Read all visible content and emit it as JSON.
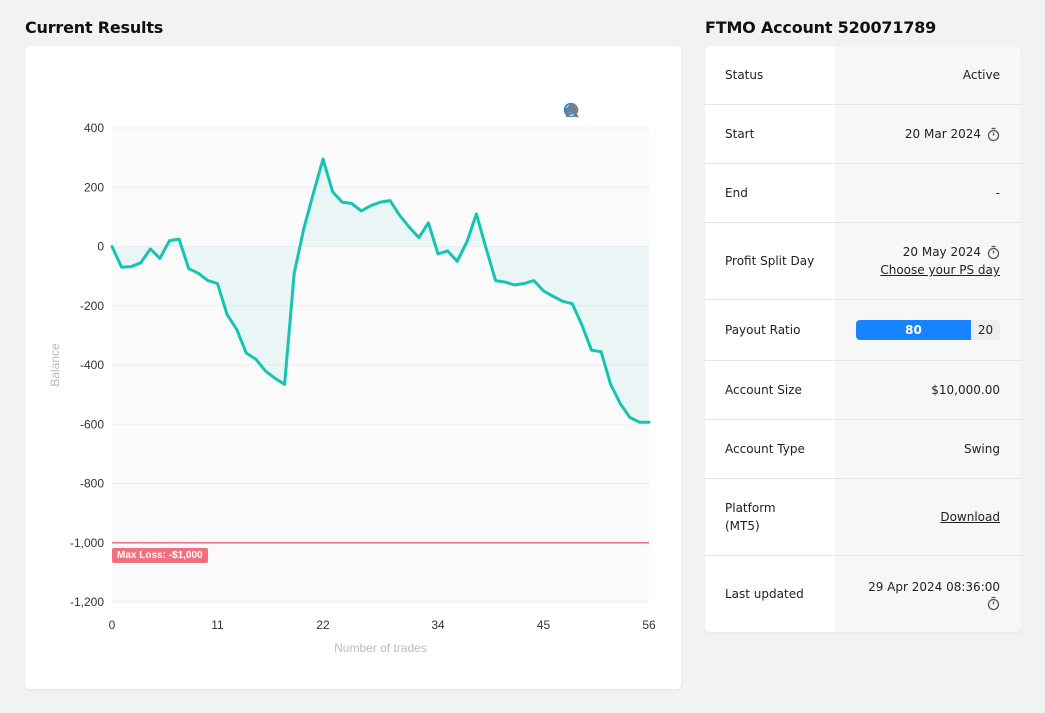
{
  "results_title": "Current Results",
  "account_title": "FTMO Account 520071789",
  "toolbar": {
    "zoom_in_icon": "zoom-in-icon",
    "zoom_out_icon": "zoom-out-icon",
    "selection_zoom_icon": "selection-zoom-icon",
    "reset_icon": "home-icon"
  },
  "max_loss_label": "Max Loss: -$1,000",
  "chart_data": {
    "type": "area",
    "xlabel": "Number of trades",
    "ylabel": "Balance",
    "xlim": [
      0,
      56
    ],
    "ylim": [
      -1200,
      400
    ],
    "x_ticks": [
      0,
      11,
      22,
      34,
      45,
      56
    ],
    "y_ticks": [
      400,
      200,
      0,
      -200,
      -400,
      -600,
      -800,
      -1000,
      -1200
    ],
    "y_tick_labels": [
      "400",
      "200",
      "0",
      "-200",
      "-400",
      "-600",
      "-800",
      "-1,000",
      "-1,200"
    ],
    "grid": true,
    "line_color": "#17c3b2",
    "max_loss_color": "#f07080",
    "max_loss": -1000,
    "series": [
      {
        "x": [
          0,
          1,
          2,
          3,
          4,
          5,
          6,
          7,
          8,
          9,
          10,
          11,
          12,
          13,
          14,
          15,
          16,
          17,
          18,
          19,
          20,
          21,
          22,
          23,
          24,
          25,
          26,
          27,
          28,
          29,
          30,
          31,
          32,
          33,
          34,
          35,
          36,
          37,
          38,
          39,
          40,
          41,
          42,
          43,
          44,
          45,
          46,
          47,
          48,
          49,
          50,
          51,
          52,
          53,
          54,
          55,
          56
        ],
        "values": [
          0,
          -70,
          -68,
          -55,
          -8,
          -40,
          20,
          25,
          -75,
          -90,
          -115,
          -125,
          -230,
          -280,
          -360,
          -380,
          -420,
          -445,
          -465,
          -90,
          60,
          180,
          295,
          185,
          150,
          145,
          120,
          138,
          150,
          155,
          105,
          65,
          30,
          80,
          -25,
          -15,
          -50,
          15,
          110,
          -5,
          -115,
          -120,
          -130,
          -125,
          -115,
          -150,
          -168,
          -185,
          -193,
          -265,
          -350,
          -355,
          -465,
          -530,
          -577,
          -593,
          -593
        ]
      }
    ]
  },
  "account_rows": {
    "status": {
      "label": "Status",
      "value": "Active"
    },
    "start": {
      "label": "Start",
      "value": "20 Mar 2024"
    },
    "end": {
      "label": "End",
      "value": "-"
    },
    "profit_split": {
      "label": "Profit Split Day",
      "value": "20 May 2024",
      "link": "Choose your PS day"
    },
    "payout": {
      "label": "Payout Ratio",
      "a": "80",
      "b": "20",
      "a_fraction": 0.8,
      "a_color": "#1883ff"
    },
    "size": {
      "label": "Account Size",
      "value": "$10,000.00"
    },
    "type": {
      "label": "Account Type",
      "value": "Swing"
    },
    "platform": {
      "label_1": "Platform",
      "label_2": "(MT5)",
      "link": "Download"
    },
    "updated": {
      "label": "Last updated",
      "value": "29 Apr 2024 08:36:00"
    }
  }
}
